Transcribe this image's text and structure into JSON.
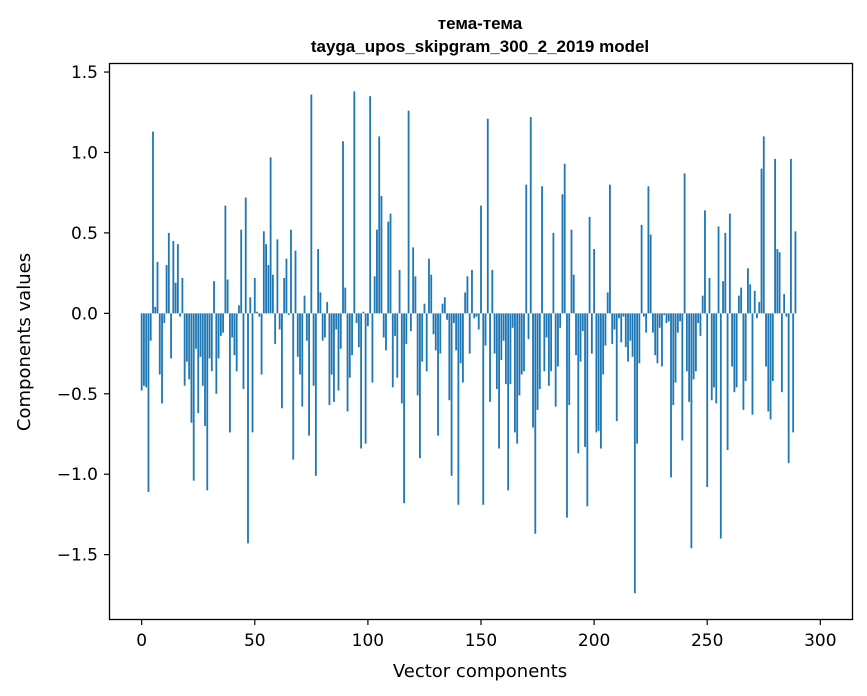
{
  "chart_data": {
    "type": "bar",
    "title": "тема-тема",
    "subtitle": "tayga_upos_skipgram_300_2_2019 model",
    "xlabel": "Vector components",
    "ylabel": "Components values",
    "xlim": [
      -14,
      314
    ],
    "ylim": [
      -1.9,
      1.55
    ],
    "xticks": [
      0,
      50,
      100,
      150,
      200,
      250,
      300
    ],
    "xtick_labels": [
      "0",
      "50",
      "100",
      "150",
      "200",
      "250",
      "300"
    ],
    "yticks": [
      1.5,
      1.0,
      0.5,
      0.0,
      -0.5,
      -1.0,
      -1.5
    ],
    "ytick_labels": [
      "1.5",
      "1.0",
      "0.5",
      "0.0",
      "−0.5",
      "−1.0",
      "−1.5"
    ],
    "bar_color": "#1f77b4",
    "values": [
      -0.48,
      -0.45,
      -0.46,
      -1.11,
      -0.17,
      1.13,
      0.04,
      0.32,
      -0.38,
      -0.56,
      -0.06,
      0.3,
      0.5,
      -0.28,
      0.45,
      0.19,
      0.43,
      -0.02,
      0.22,
      -0.45,
      -0.3,
      -0.41,
      -0.68,
      -1.04,
      -0.22,
      -0.62,
      -0.27,
      -0.45,
      -0.7,
      -1.1,
      -0.28,
      -0.36,
      0.2,
      -0.5,
      -0.28,
      -0.14,
      -0.12,
      0.67,
      0.21,
      -0.74,
      -0.15,
      -0.26,
      -0.36,
      0.05,
      0.52,
      -0.47,
      0.72,
      -1.43,
      0.1,
      -0.74,
      0.22,
      0.01,
      -0.02,
      -0.38,
      0.51,
      0.43,
      0.3,
      0.97,
      0.24,
      -0.19,
      0.46,
      -0.1,
      -0.59,
      0.22,
      0.34,
      -0.01,
      0.52,
      -0.91,
      0.39,
      -0.27,
      -0.38,
      -0.58,
      0.11,
      -0.17,
      -0.76,
      1.36,
      -0.45,
      -1.01,
      0.4,
      0.13,
      -0.17,
      -0.15,
      0.07,
      -0.57,
      -0.38,
      -0.55,
      -0.1,
      -0.48,
      -0.22,
      1.07,
      0.16,
      -0.61,
      -0.4,
      -0.26,
      1.38,
      -0.06,
      -0.21,
      -0.84,
      0.01,
      -0.81,
      -0.08,
      1.35,
      -0.43,
      0.23,
      0.52,
      1.1,
      0.73,
      -0.15,
      -0.23,
      0.57,
      0.62,
      -0.46,
      -0.14,
      -0.4,
      0.27,
      -0.56,
      -1.18,
      -0.19,
      1.26,
      -0.11,
      0.41,
      0.23,
      -0.51,
      -0.9,
      -0.3,
      0.06,
      -0.36,
      0.34,
      0.24,
      -0.13,
      -0.23,
      -0.76,
      -0.25,
      0.06,
      0.1,
      -0.04,
      -0.54,
      -1.01,
      -0.06,
      -0.23,
      -1.19,
      -0.31,
      -0.43,
      0.13,
      0.23,
      -0.25,
      0.27,
      -0.03,
      -0.02,
      -0.1,
      0.67,
      -1.19,
      -0.2,
      1.21,
      -0.55,
      0.27,
      -0.25,
      -0.47,
      -0.84,
      -0.29,
      -0.17,
      -0.44,
      -1.1,
      -0.44,
      -0.09,
      -0.74,
      -0.81,
      -0.51,
      -0.38,
      -0.36,
      0.8,
      -0.16,
      1.22,
      -0.71,
      -1.37,
      -0.6,
      -0.47,
      0.79,
      -0.36,
      -0.15,
      -0.45,
      -0.36,
      0.5,
      -0.58,
      -0.33,
      -0.09,
      0.74,
      0.93,
      -1.27,
      -0.57,
      0.52,
      0.24,
      -0.26,
      -0.87,
      -0.3,
      -0.11,
      -0.83,
      -1.2,
      0.6,
      -0.25,
      0.4,
      -0.74,
      -0.73,
      -0.84,
      -0.38,
      -0.2,
      0.13,
      0.8,
      -0.19,
      -0.1,
      -0.67,
      -0.03,
      -0.18,
      -0.02,
      -0.21,
      -0.3,
      -0.17,
      -0.27,
      -1.74,
      -0.81,
      -0.31,
      0.55,
      -0.02,
      -0.12,
      0.79,
      0.49,
      -0.12,
      -0.26,
      -0.31,
      -0.09,
      -0.33,
      -0.01,
      -0.06,
      -0.05,
      -1.02,
      -0.57,
      -0.43,
      -0.12,
      -0.05,
      -0.79,
      0.87,
      -0.36,
      -0.55,
      -1.46,
      -0.41,
      -0.36,
      -0.06,
      -0.14,
      0.11,
      0.64,
      -1.08,
      0.22,
      -0.54,
      -0.46,
      -0.56,
      0.54,
      -1.4,
      0.2,
      0.5,
      -0.85,
      0.62,
      -0.33,
      -0.49,
      -0.46,
      0.11,
      0.16,
      -0.6,
      -0.42,
      0.28,
      0.18,
      -0.63,
      0.14,
      -0.03,
      0.07,
      0.9,
      1.1,
      -0.33,
      -0.61,
      -0.66,
      -0.42,
      0.96,
      0.4,
      0.38,
      -0.49,
      0.12,
      -0.02,
      -0.93,
      0.96,
      -0.74,
      0.51
    ]
  }
}
